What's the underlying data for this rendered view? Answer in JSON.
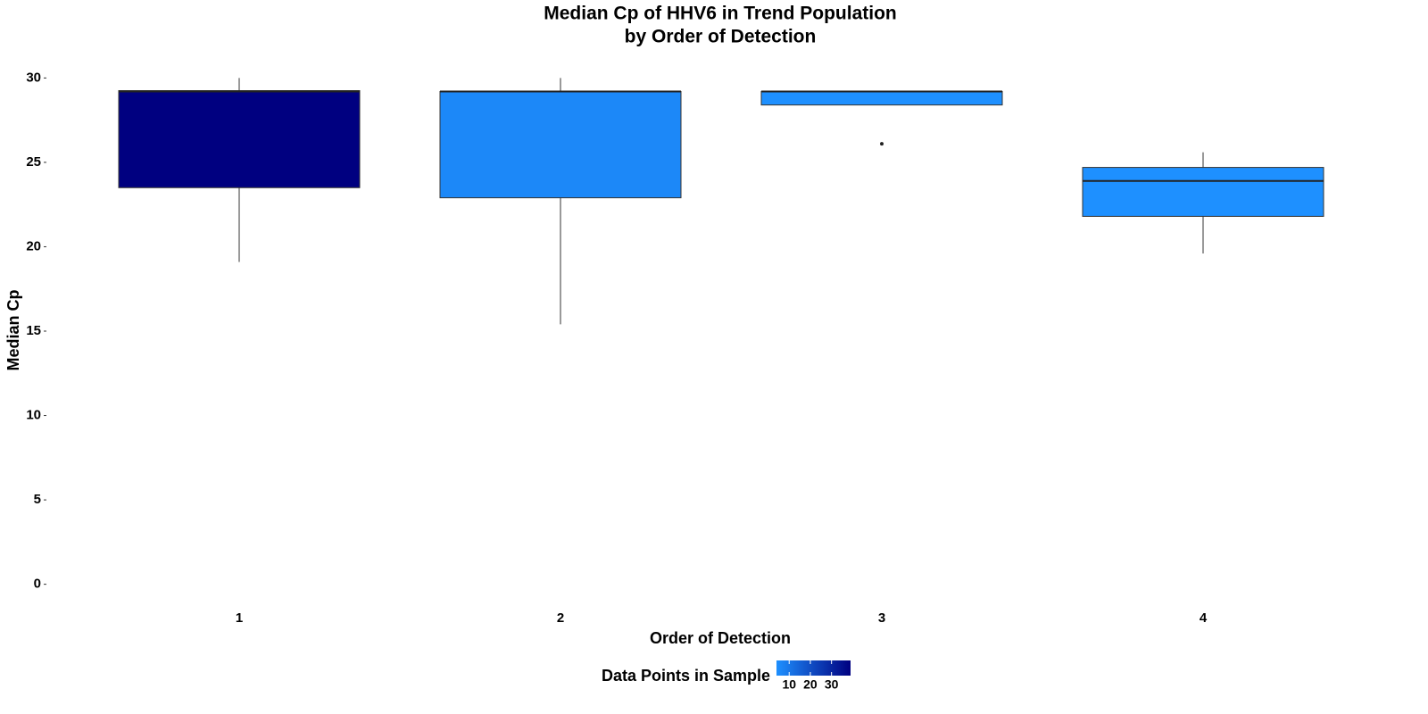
{
  "chart_data": {
    "type": "box",
    "title": [
      "Median Cp of HHV6 in Trend Population",
      "by Order of Detection"
    ],
    "x_label": "Order of Detection",
    "y_label": "Median Cp",
    "categories": [
      "1",
      "2",
      "3",
      "4"
    ],
    "boxes": [
      {
        "whislo": 19.1,
        "q1": 23.5,
        "med": 29.2,
        "q3": 29.25,
        "whishi": 30,
        "fliers": [],
        "count": 39
      },
      {
        "whislo": 15.4,
        "q1": 22.9,
        "med": 29.2,
        "q3": 29.2,
        "whishi": 30,
        "fliers": [],
        "count": 6
      },
      {
        "whislo": 28.4,
        "q1": 28.4,
        "med": 29.2,
        "q3": 29.2,
        "whishi": 29.25,
        "fliers": [
          26.1
        ],
        "count": 4
      },
      {
        "whislo": 19.6,
        "q1": 21.8,
        "med": 23.9,
        "q3": 24.7,
        "whishi": 25.6,
        "fliers": [],
        "count": 4
      }
    ],
    "ylim": [
      -1.5,
      31.5
    ],
    "yticks": [
      0,
      5,
      10,
      15,
      20,
      25,
      30
    ],
    "colorbar": {
      "title": "Data Points in Sample",
      "low": "#1E90FF",
      "high": "#000080",
      "lim": [
        4,
        39
      ],
      "ticks": [
        10,
        20,
        30
      ]
    }
  }
}
